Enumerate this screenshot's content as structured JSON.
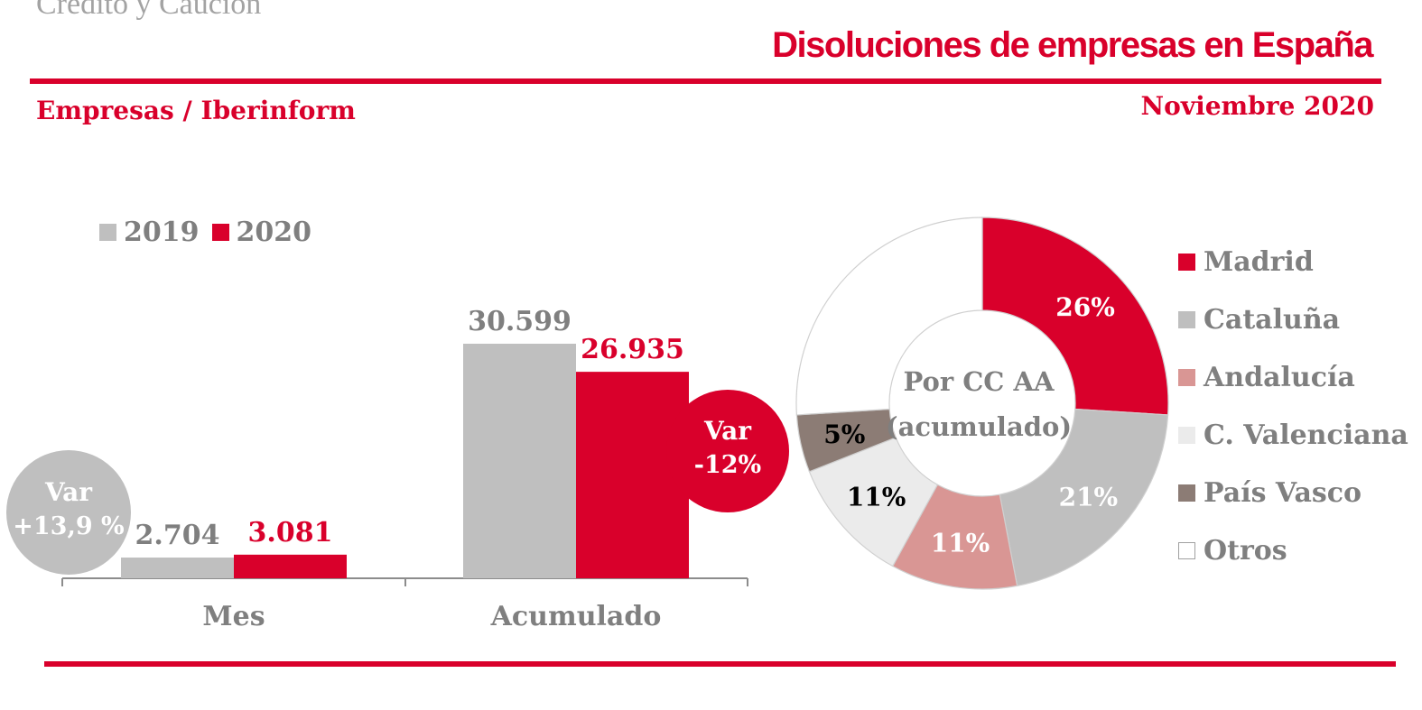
{
  "header": {
    "brand": "Crédito y Caución",
    "title": "Disoluciones de empresas en España",
    "subtitle": "Empresas / Iberinform",
    "date": "Noviembre 2020"
  },
  "colors": {
    "red": "#d9002b",
    "grey": "#bfbfbf",
    "text_grey": "#7f7f7f"
  },
  "chart_data": [
    {
      "type": "bar",
      "categories": [
        "Mes",
        "Acumulado"
      ],
      "series": [
        {
          "name": "2019",
          "values": [
            2704,
            30599
          ],
          "labels": [
            "2.704",
            "30.599"
          ],
          "color": "#bfbfbf"
        },
        {
          "name": "2020",
          "values": [
            3081,
            26935
          ],
          "labels": [
            "3.081",
            "26.935"
          ],
          "color": "#d9002b"
        }
      ],
      "annotations": [
        {
          "category": "Mes",
          "line1": "Var",
          "line2": "+13,9 %",
          "color": "#bfbfbf"
        },
        {
          "category": "Acumulado",
          "line1": "Var",
          "line2": "-12%",
          "color": "#d9002b"
        }
      ],
      "legend_position": "top-left",
      "grid": false,
      "ylim": [
        0,
        32000
      ]
    },
    {
      "type": "pie",
      "variant": "donut",
      "center_label": [
        "Por CC AA",
        "(acumulado)"
      ],
      "slices": [
        {
          "name": "Madrid",
          "value": 26,
          "label": "26%",
          "color": "#d9002b",
          "label_color": "#ffffff"
        },
        {
          "name": "Cataluña",
          "value": 21,
          "label": "21%",
          "color": "#bfbfbf",
          "label_color": "#ffffff"
        },
        {
          "name": "Andalucía",
          "value": 11,
          "label": "11%",
          "color": "#d99694",
          "label_color": "#ffffff"
        },
        {
          "name": "C. Valenciana",
          "value": 11,
          "label": "11%",
          "color": "#ebebeb",
          "label_color": "#000000"
        },
        {
          "name": "País Vasco",
          "value": 5,
          "label": "5%",
          "color": "#8c7c75",
          "label_color": "#000000"
        },
        {
          "name": "Otros",
          "value": 26,
          "label": "",
          "color": "#ffffff",
          "label_color": "#000000"
        }
      ],
      "legend_position": "right"
    }
  ]
}
